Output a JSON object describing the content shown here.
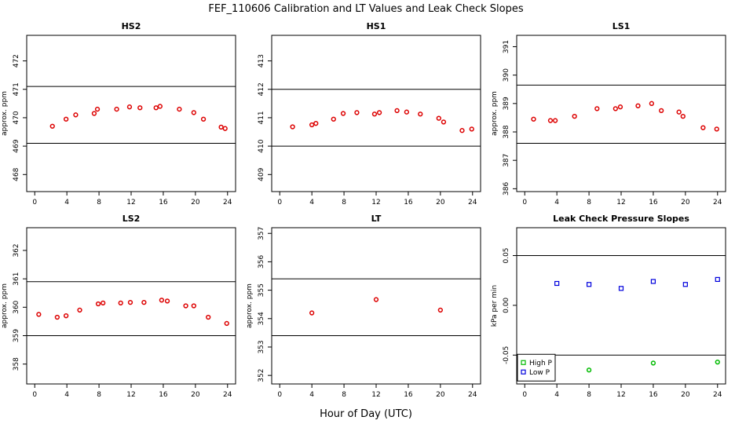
{
  "figure": {
    "title": "FEF_110606  Calibration and LT Values and Leak Check Slopes",
    "xlabel": "Hour of Day (UTC)"
  },
  "chart_data": [
    {
      "id": "hs2",
      "type": "scatter",
      "title": "HS2",
      "ylabel": "approx. ppm",
      "xlim": [
        -1,
        25
      ],
      "ylim": [
        467.4,
        472.9
      ],
      "xticks": [
        0,
        4,
        8,
        12,
        16,
        20,
        24
      ],
      "yticks": [
        468,
        469,
        470,
        471,
        472
      ],
      "hlines": [
        471.1,
        469.1
      ],
      "series": [
        {
          "color": "#dd0000",
          "marker": "circle",
          "x": [
            2.2,
            3.9,
            5.1,
            7.4,
            7.8,
            10.2,
            11.8,
            13.1,
            15.1,
            15.6,
            18.0,
            19.8,
            21.0,
            23.2,
            23.7
          ],
          "y": [
            469.7,
            469.95,
            470.1,
            470.15,
            470.3,
            470.3,
            470.38,
            470.35,
            470.35,
            470.4,
            470.3,
            470.18,
            469.95,
            469.67,
            469.62
          ]
        }
      ]
    },
    {
      "id": "hs1",
      "type": "scatter",
      "title": "HS1",
      "ylabel": "",
      "xlim": [
        -1,
        25
      ],
      "ylim": [
        408.4,
        413.9
      ],
      "xticks": [
        0,
        4,
        8,
        12,
        16,
        20,
        24
      ],
      "yticks": [
        409,
        410,
        411,
        412,
        413
      ],
      "hlines": [
        412.0,
        410.0
      ],
      "series": [
        {
          "color": "#dd0000",
          "marker": "circle",
          "x": [
            1.6,
            4.0,
            4.5,
            6.7,
            7.9,
            9.6,
            11.8,
            12.4,
            14.6,
            15.8,
            17.5,
            19.8,
            20.4,
            22.7,
            23.9
          ],
          "y": [
            410.68,
            410.75,
            410.8,
            410.95,
            411.15,
            411.18,
            411.13,
            411.18,
            411.25,
            411.2,
            411.13,
            410.98,
            410.85,
            410.55,
            410.6
          ]
        }
      ]
    },
    {
      "id": "ls1",
      "type": "scatter",
      "title": "LS1",
      "ylabel": "approx. ppm",
      "xlim": [
        -1,
        25
      ],
      "ylim": [
        385.9,
        391.4
      ],
      "xticks": [
        0,
        4,
        8,
        12,
        16,
        20,
        24
      ],
      "yticks": [
        386,
        387,
        388,
        389,
        390,
        391
      ],
      "hlines": [
        389.65,
        387.6
      ],
      "series": [
        {
          "color": "#dd0000",
          "marker": "circle",
          "x": [
            1.1,
            3.2,
            3.8,
            6.2,
            9.0,
            11.3,
            11.9,
            14.1,
            15.8,
            17.0,
            19.2,
            19.7,
            22.2,
            23.9
          ],
          "y": [
            388.45,
            388.4,
            388.4,
            388.55,
            388.82,
            388.82,
            388.88,
            388.92,
            389.0,
            388.75,
            388.7,
            388.55,
            388.15,
            388.1
          ]
        }
      ]
    },
    {
      "id": "ls2",
      "type": "scatter",
      "title": "LS2",
      "ylabel": "approx. ppm",
      "xlim": [
        -1,
        25
      ],
      "ylim": [
        357.3,
        362.8
      ],
      "xticks": [
        0,
        4,
        8,
        12,
        16,
        20,
        24
      ],
      "yticks": [
        358,
        359,
        360,
        361,
        362
      ],
      "hlines": [
        360.9,
        359.0
      ],
      "series": [
        {
          "color": "#dd0000",
          "marker": "circle",
          "x": [
            0.5,
            2.8,
            3.9,
            5.6,
            7.9,
            8.5,
            10.7,
            11.9,
            13.6,
            15.8,
            16.5,
            18.8,
            19.8,
            21.6,
            23.9
          ],
          "y": [
            359.75,
            359.65,
            359.7,
            359.9,
            360.12,
            360.15,
            360.15,
            360.17,
            360.17,
            360.25,
            360.22,
            360.05,
            360.05,
            359.65,
            359.43
          ]
        }
      ]
    },
    {
      "id": "lt",
      "type": "scatter",
      "title": "LT",
      "ylabel": "approx. ppm",
      "xlim": [
        -1,
        25
      ],
      "ylim": [
        351.7,
        357.2
      ],
      "xticks": [
        0,
        4,
        8,
        12,
        16,
        20,
        24
      ],
      "yticks": [
        352,
        353,
        354,
        355,
        356,
        357
      ],
      "hlines": [
        355.4,
        353.4
      ],
      "series": [
        {
          "color": "#dd0000",
          "marker": "circle",
          "x": [
            4.0,
            12.0,
            20.0
          ],
          "y": [
            354.2,
            354.67,
            354.3
          ]
        }
      ]
    },
    {
      "id": "leak",
      "type": "scatter",
      "title": "Leak Check Pressure Slopes",
      "ylabel": "kPa per min",
      "xlim": [
        -1,
        25
      ],
      "ylim": [
        -0.079,
        0.078
      ],
      "xticks": [
        0,
        4,
        8,
        12,
        16,
        20,
        24
      ],
      "yticks": [
        -0.05,
        0.0,
        0.05
      ],
      "ytick_labels": [
        "-0.05",
        "0.00",
        "0.05"
      ],
      "hlines": [
        0.05,
        -0.05
      ],
      "legend": {
        "position": "bottom-left",
        "entries": [
          {
            "label": "High P",
            "color": "#00bb00"
          },
          {
            "label": "Low P",
            "color": "#0000dd"
          }
        ]
      },
      "series": [
        {
          "name": "High P",
          "color": "#00bb00",
          "marker": "circle",
          "x": [
            8,
            16,
            24
          ],
          "y": [
            -0.065,
            -0.058,
            -0.057
          ]
        },
        {
          "name": "Low P",
          "color": "#0000dd",
          "marker": "square",
          "x": [
            4,
            8,
            12,
            16,
            20,
            24
          ],
          "y": [
            0.022,
            0.021,
            0.017,
            0.024,
            0.021,
            0.026
          ]
        }
      ]
    }
  ]
}
